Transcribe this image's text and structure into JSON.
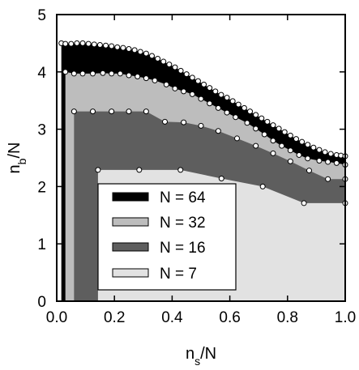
{
  "chart_data": {
    "type": "area",
    "title": "",
    "xlabel": "n_s/N",
    "ylabel": "n_b/N",
    "xlim": [
      0,
      1
    ],
    "ylim": [
      0,
      5
    ],
    "xticks": [
      "0.0",
      "0.2",
      "0.4",
      "0.6",
      "0.8",
      "1.0"
    ],
    "yticks": [
      "0",
      "1",
      "2",
      "3",
      "4",
      "5"
    ],
    "grid": false,
    "legend_position": "lower-left",
    "series": [
      {
        "name": "N = 64",
        "color": "#000000",
        "points": [
          [
            0.016,
            4.5
          ],
          [
            0.03,
            4.49
          ],
          [
            0.05,
            4.49
          ],
          [
            0.07,
            4.5
          ],
          [
            0.09,
            4.5
          ],
          [
            0.11,
            4.49
          ],
          [
            0.13,
            4.48
          ],
          [
            0.15,
            4.47
          ],
          [
            0.17,
            4.46
          ],
          [
            0.19,
            4.45
          ],
          [
            0.21,
            4.43
          ],
          [
            0.23,
            4.42
          ],
          [
            0.25,
            4.4
          ],
          [
            0.27,
            4.38
          ],
          [
            0.29,
            4.35
          ],
          [
            0.31,
            4.32
          ],
          [
            0.33,
            4.28
          ],
          [
            0.35,
            4.23
          ],
          [
            0.37,
            4.18
          ],
          [
            0.39,
            4.13
          ],
          [
            0.41,
            4.08
          ],
          [
            0.43,
            4.02
          ],
          [
            0.45,
            3.96
          ],
          [
            0.47,
            3.9
          ],
          [
            0.49,
            3.84
          ],
          [
            0.51,
            3.78
          ],
          [
            0.53,
            3.72
          ],
          [
            0.55,
            3.66
          ],
          [
            0.57,
            3.6
          ],
          [
            0.59,
            3.55
          ],
          [
            0.61,
            3.49
          ],
          [
            0.63,
            3.43
          ],
          [
            0.65,
            3.37
          ],
          [
            0.67,
            3.31
          ],
          [
            0.69,
            3.25
          ],
          [
            0.71,
            3.19
          ],
          [
            0.73,
            3.13
          ],
          [
            0.75,
            3.07
          ],
          [
            0.77,
            3.01
          ],
          [
            0.79,
            2.95
          ],
          [
            0.81,
            2.89
          ],
          [
            0.83,
            2.83
          ],
          [
            0.85,
            2.78
          ],
          [
            0.87,
            2.73
          ],
          [
            0.89,
            2.68
          ],
          [
            0.91,
            2.64
          ],
          [
            0.93,
            2.6
          ],
          [
            0.95,
            2.57
          ],
          [
            0.97,
            2.55
          ],
          [
            0.985,
            2.54
          ],
          [
            1.0,
            2.53
          ]
        ]
      },
      {
        "name": "N = 32",
        "color": "#bdbdbd",
        "points": [
          [
            0.03,
            4.0
          ],
          [
            0.06,
            3.97
          ],
          [
            0.09,
            3.97
          ],
          [
            0.125,
            3.97
          ],
          [
            0.16,
            3.98
          ],
          [
            0.19,
            3.97
          ],
          [
            0.22,
            3.97
          ],
          [
            0.25,
            3.94
          ],
          [
            0.28,
            3.92
          ],
          [
            0.31,
            3.89
          ],
          [
            0.34,
            3.85
          ],
          [
            0.38,
            3.78
          ],
          [
            0.41,
            3.71
          ],
          [
            0.44,
            3.66
          ],
          [
            0.47,
            3.61
          ],
          [
            0.5,
            3.53
          ],
          [
            0.53,
            3.45
          ],
          [
            0.56,
            3.37
          ],
          [
            0.59,
            3.29
          ],
          [
            0.62,
            3.21
          ],
          [
            0.66,
            3.11
          ],
          [
            0.69,
            3.01
          ],
          [
            0.72,
            2.91
          ],
          [
            0.75,
            2.8
          ],
          [
            0.78,
            2.71
          ],
          [
            0.81,
            2.63
          ],
          [
            0.84,
            2.55
          ],
          [
            0.87,
            2.49
          ],
          [
            0.91,
            2.45
          ],
          [
            0.94,
            2.43
          ],
          [
            0.97,
            2.41
          ],
          [
            1.0,
            2.38
          ]
        ]
      },
      {
        "name": "N = 16",
        "color": "#5e5e5e",
        "points": [
          [
            0.06,
            3.31
          ],
          [
            0.125,
            3.31
          ],
          [
            0.19,
            3.31
          ],
          [
            0.25,
            3.31
          ],
          [
            0.31,
            3.31
          ],
          [
            0.375,
            3.13
          ],
          [
            0.44,
            3.12
          ],
          [
            0.5,
            3.06
          ],
          [
            0.56,
            2.97
          ],
          [
            0.625,
            2.84
          ],
          [
            0.69,
            2.71
          ],
          [
            0.75,
            2.58
          ],
          [
            0.81,
            2.44
          ],
          [
            0.875,
            2.28
          ],
          [
            0.94,
            2.13
          ],
          [
            1.0,
            2.13
          ]
        ]
      },
      {
        "name": "N = 7",
        "color": "#e2e2e2",
        "points": [
          [
            0.143,
            2.29
          ],
          [
            0.286,
            2.29
          ],
          [
            0.429,
            2.29
          ],
          [
            0.571,
            2.14
          ],
          [
            0.714,
            2.0
          ],
          [
            0.857,
            1.71
          ],
          [
            1.0,
            1.71
          ]
        ]
      }
    ]
  }
}
